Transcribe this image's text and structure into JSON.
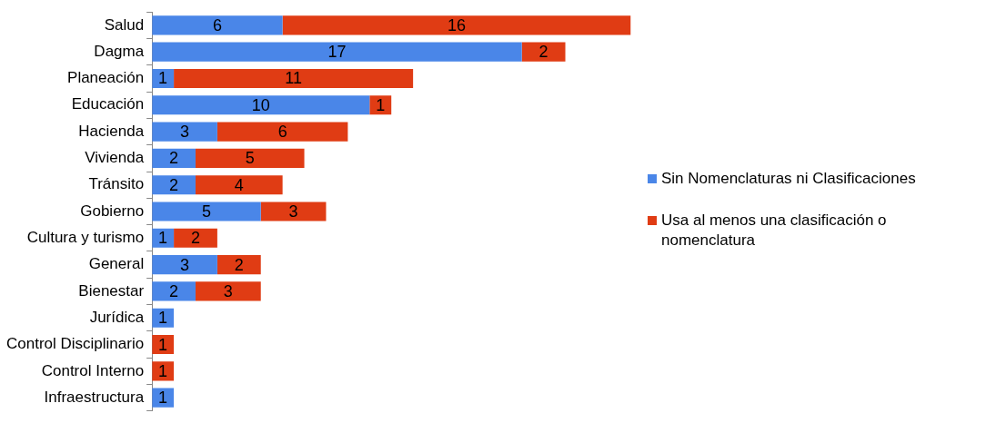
{
  "chart_data": {
    "type": "bar",
    "orientation": "horizontal",
    "stacked": true,
    "data_labels": true,
    "legend": "right",
    "tick_labels": "y",
    "categories": [
      "Salud",
      "Dagma",
      "Planeación",
      "Educación",
      "Hacienda",
      "Vivienda",
      "Tránsito",
      "Gobierno",
      "Cultura y turismo",
      "General",
      "Bienestar",
      "Jurídica",
      "Control Disciplinario",
      "Control Interno",
      "Infraestructura"
    ],
    "series": [
      {
        "name": "Sin Nomenclaturas ni Clasificaciones",
        "color": "#4a86e8",
        "values": [
          6,
          17,
          1,
          10,
          3,
          2,
          2,
          5,
          1,
          3,
          2,
          1,
          null,
          null,
          1
        ]
      },
      {
        "name": "Usa al menos una clasificación o nomenclatura",
        "color": "#e03c14",
        "values": [
          16,
          2,
          11,
          1,
          6,
          5,
          4,
          3,
          2,
          2,
          3,
          null,
          1,
          1,
          null
        ]
      }
    ]
  }
}
